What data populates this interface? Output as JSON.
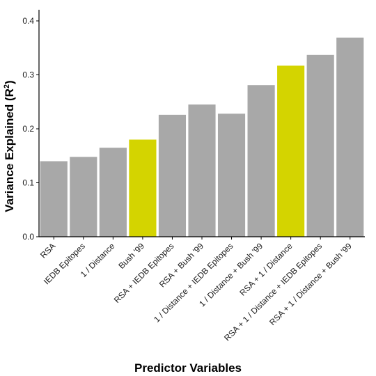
{
  "chart_data": {
    "type": "bar",
    "title": "",
    "xlabel": "Predictor Variables",
    "ylabel": "Variance Explained (R",
    "ylabel_superscript": "2",
    "ylabel_suffix": ")",
    "ylim": [
      0,
      0.42
    ],
    "yticks": [
      "0.0",
      "0.1",
      "0.2",
      "0.3",
      "0.4"
    ],
    "ytick_values": [
      0.0,
      0.1,
      0.2,
      0.3,
      0.4
    ],
    "grid": false,
    "legend": "none",
    "categories": [
      "RSA",
      "IEDB Epitopes",
      "1 / Distance",
      "Bush '99",
      "RSA + IEDB Epitopes",
      "RSA + Bush '99",
      "1 / Distance + IEDB Epitopes",
      "1 / Distance + Bush '99",
      "RSA + 1 / Distance",
      "RSA + 1 / Distance + IEDB Epitopes",
      "RSA + 1 / Distance + Bush '99"
    ],
    "values": [
      0.14,
      0.148,
      0.165,
      0.18,
      0.226,
      0.245,
      0.228,
      0.281,
      0.317,
      0.337,
      0.369
    ],
    "highlighted": [
      false,
      false,
      false,
      true,
      false,
      false,
      false,
      false,
      true,
      false,
      false
    ],
    "colors": {
      "default": "#a8a8a8",
      "highlight": "#d4d400",
      "axis": "#000000"
    }
  }
}
